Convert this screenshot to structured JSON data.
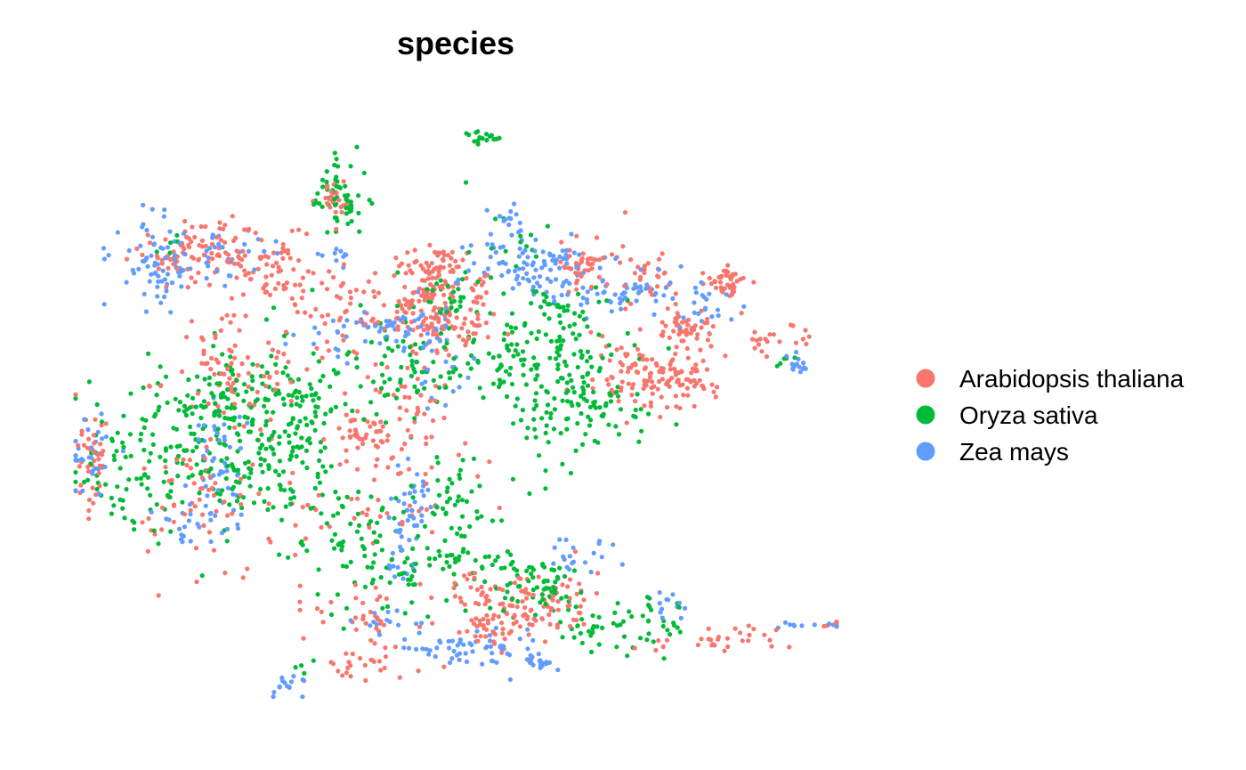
{
  "chart_data": {
    "type": "scatter",
    "title": "species",
    "xlabel": "",
    "ylabel": "",
    "axes": "none",
    "grid": false,
    "legend_position": "right",
    "series": [
      {
        "name": "Arabidopsis thaliana",
        "color": "#F8766D",
        "clusters": [
          {
            "x": 0.16,
            "y": 0.76,
            "sx": 0.045,
            "sy": 0.025,
            "n": 90
          },
          {
            "x": 0.26,
            "y": 0.73,
            "sx": 0.035,
            "sy": 0.035,
            "n": 70
          },
          {
            "x": 0.34,
            "y": 0.85,
            "sx": 0.012,
            "sy": 0.01,
            "n": 22
          },
          {
            "x": 0.47,
            "y": 0.74,
            "sx": 0.025,
            "sy": 0.02,
            "n": 45
          },
          {
            "x": 0.47,
            "y": 0.63,
            "sx": 0.03,
            "sy": 0.025,
            "n": 80
          },
          {
            "x": 0.43,
            "y": 0.67,
            "sx": 0.008,
            "sy": 0.008,
            "n": 14
          },
          {
            "x": 0.46,
            "y": 0.69,
            "sx": 0.01,
            "sy": 0.01,
            "n": 20
          },
          {
            "x": 0.475,
            "y": 0.71,
            "sx": 0.02,
            "sy": 0.02,
            "n": 30
          },
          {
            "x": 0.53,
            "y": 0.67,
            "sx": 0.012,
            "sy": 0.03,
            "n": 20
          },
          {
            "x": 0.2,
            "y": 0.57,
            "sx": 0.05,
            "sy": 0.06,
            "n": 90
          },
          {
            "x": 0.02,
            "y": 0.4,
            "sx": 0.012,
            "sy": 0.045,
            "n": 40
          },
          {
            "x": 0.16,
            "y": 0.35,
            "sx": 0.045,
            "sy": 0.05,
            "n": 60
          },
          {
            "x": 0.38,
            "y": 0.45,
            "sx": 0.03,
            "sy": 0.02,
            "n": 45
          },
          {
            "x": 0.44,
            "y": 0.5,
            "sx": 0.025,
            "sy": 0.04,
            "n": 35
          },
          {
            "x": 0.36,
            "y": 0.65,
            "sx": 0.04,
            "sy": 0.04,
            "n": 45
          },
          {
            "x": 0.67,
            "y": 0.74,
            "sx": 0.02,
            "sy": 0.02,
            "n": 45
          },
          {
            "x": 0.75,
            "y": 0.72,
            "sx": 0.018,
            "sy": 0.03,
            "n": 30
          },
          {
            "x": 0.74,
            "y": 0.55,
            "sx": 0.03,
            "sy": 0.03,
            "n": 80
          },
          {
            "x": 0.8,
            "y": 0.54,
            "sx": 0.025,
            "sy": 0.02,
            "n": 55
          },
          {
            "x": 0.8,
            "y": 0.63,
            "sx": 0.02,
            "sy": 0.015,
            "n": 45
          },
          {
            "x": 0.86,
            "y": 0.71,
            "sx": 0.015,
            "sy": 0.015,
            "n": 40
          },
          {
            "x": 0.91,
            "y": 0.62,
            "sx": 0.03,
            "sy": 0.015,
            "n": 25
          },
          {
            "x": 0.38,
            "y": 0.15,
            "sx": 0.04,
            "sy": 0.03,
            "n": 35
          },
          {
            "x": 0.59,
            "y": 0.17,
            "sx": 0.05,
            "sy": 0.025,
            "n": 110
          },
          {
            "x": 0.55,
            "y": 0.12,
            "sx": 0.03,
            "sy": 0.02,
            "n": 40
          },
          {
            "x": 0.84,
            "y": 0.11,
            "sx": 0.035,
            "sy": 0.015,
            "n": 30
          },
          {
            "x": 0.39,
            "y": 0.06,
            "sx": 0.03,
            "sy": 0.02,
            "n": 25
          },
          {
            "x": 1.0,
            "y": 0.13,
            "sx": 0.02,
            "sy": 0.004,
            "n": 10
          },
          {
            "x": 0.4,
            "y": 0.35,
            "sx": 0.07,
            "sy": 0.05,
            "n": 50
          }
        ]
      },
      {
        "name": "Oryza sativa",
        "color": "#00BA38",
        "clusters": [
          {
            "x": 0.35,
            "y": 0.85,
            "sx": 0.02,
            "sy": 0.03,
            "n": 60
          },
          {
            "x": 0.54,
            "y": 0.95,
            "sx": 0.01,
            "sy": 0.008,
            "n": 18
          },
          {
            "x": 0.63,
            "y": 0.63,
            "sx": 0.04,
            "sy": 0.04,
            "n": 70
          },
          {
            "x": 0.68,
            "y": 0.51,
            "sx": 0.04,
            "sy": 0.05,
            "n": 80
          },
          {
            "x": 0.62,
            "y": 0.52,
            "sx": 0.03,
            "sy": 0.06,
            "n": 60
          },
          {
            "x": 0.55,
            "y": 0.56,
            "sx": 0.03,
            "sy": 0.03,
            "n": 40
          },
          {
            "x": 0.2,
            "y": 0.5,
            "sx": 0.05,
            "sy": 0.05,
            "n": 130
          },
          {
            "x": 0.3,
            "y": 0.48,
            "sx": 0.03,
            "sy": 0.06,
            "n": 100
          },
          {
            "x": 0.1,
            "y": 0.4,
            "sx": 0.06,
            "sy": 0.06,
            "n": 120
          },
          {
            "x": 0.24,
            "y": 0.4,
            "sx": 0.03,
            "sy": 0.06,
            "n": 70
          },
          {
            "x": 0.44,
            "y": 0.57,
            "sx": 0.035,
            "sy": 0.06,
            "n": 70
          },
          {
            "x": 0.49,
            "y": 0.31,
            "sx": 0.03,
            "sy": 0.06,
            "n": 70
          },
          {
            "x": 0.42,
            "y": 0.22,
            "sx": 0.05,
            "sy": 0.04,
            "n": 60
          },
          {
            "x": 0.6,
            "y": 0.2,
            "sx": 0.04,
            "sy": 0.03,
            "n": 70
          },
          {
            "x": 0.7,
            "y": 0.13,
            "sx": 0.04,
            "sy": 0.02,
            "n": 40
          },
          {
            "x": 0.78,
            "y": 0.13,
            "sx": 0.02,
            "sy": 0.02,
            "n": 15
          },
          {
            "x": 0.5,
            "y": 0.69,
            "sx": 0.02,
            "sy": 0.02,
            "n": 25
          },
          {
            "x": 0.56,
            "y": 0.78,
            "sx": 0.02,
            "sy": 0.03,
            "n": 15
          },
          {
            "x": 0.12,
            "y": 0.77,
            "sx": 0.01,
            "sy": 0.01,
            "n": 5
          },
          {
            "x": 0.93,
            "y": 0.57,
            "sx": 0.008,
            "sy": 0.01,
            "n": 5
          },
          {
            "x": 0.31,
            "y": 0.06,
            "sx": 0.01,
            "sy": 0.005,
            "n": 4
          },
          {
            "x": 0.35,
            "y": 0.3,
            "sx": 0.03,
            "sy": 0.04,
            "n": 35
          }
        ]
      },
      {
        "name": "Zea mays",
        "color": "#619CFF",
        "clusters": [
          {
            "x": 0.11,
            "y": 0.74,
            "sx": 0.03,
            "sy": 0.035,
            "n": 70
          },
          {
            "x": 0.2,
            "y": 0.76,
            "sx": 0.03,
            "sy": 0.02,
            "n": 30
          },
          {
            "x": 0.61,
            "y": 0.73,
            "sx": 0.04,
            "sy": 0.025,
            "n": 90
          },
          {
            "x": 0.72,
            "y": 0.69,
            "sx": 0.04,
            "sy": 0.02,
            "n": 50
          },
          {
            "x": 0.82,
            "y": 0.67,
            "sx": 0.03,
            "sy": 0.02,
            "n": 25
          },
          {
            "x": 0.56,
            "y": 0.8,
            "sx": 0.02,
            "sy": 0.02,
            "n": 20
          },
          {
            "x": 0.4,
            "y": 0.63,
            "sx": 0.02,
            "sy": 0.01,
            "n": 25
          },
          {
            "x": 0.34,
            "y": 0.62,
            "sx": 0.03,
            "sy": 0.02,
            "n": 20
          },
          {
            "x": 0.46,
            "y": 0.63,
            "sx": 0.02,
            "sy": 0.025,
            "n": 25
          },
          {
            "x": 0.48,
            "y": 0.55,
            "sx": 0.02,
            "sy": 0.025,
            "n": 20
          },
          {
            "x": 0.02,
            "y": 0.42,
            "sx": 0.02,
            "sy": 0.03,
            "n": 30
          },
          {
            "x": 0.19,
            "y": 0.42,
            "sx": 0.02,
            "sy": 0.06,
            "n": 40
          },
          {
            "x": 0.16,
            "y": 0.31,
            "sx": 0.03,
            "sy": 0.03,
            "n": 30
          },
          {
            "x": 0.44,
            "y": 0.34,
            "sx": 0.012,
            "sy": 0.04,
            "n": 35
          },
          {
            "x": 0.43,
            "y": 0.24,
            "sx": 0.01,
            "sy": 0.02,
            "n": 15
          },
          {
            "x": 0.66,
            "y": 0.25,
            "sx": 0.02,
            "sy": 0.02,
            "n": 20
          },
          {
            "x": 0.55,
            "y": 0.09,
            "sx": 0.03,
            "sy": 0.02,
            "n": 30
          },
          {
            "x": 0.61,
            "y": 0.07,
            "sx": 0.01,
            "sy": 0.008,
            "n": 20
          },
          {
            "x": 0.48,
            "y": 0.09,
            "sx": 0.03,
            "sy": 0.015,
            "n": 25
          },
          {
            "x": 0.4,
            "y": 0.14,
            "sx": 0.03,
            "sy": 0.015,
            "n": 15
          },
          {
            "x": 0.78,
            "y": 0.16,
            "sx": 0.01,
            "sy": 0.015,
            "n": 12
          },
          {
            "x": 0.28,
            "y": 0.03,
            "sx": 0.015,
            "sy": 0.01,
            "n": 15
          },
          {
            "x": 0.97,
            "y": 0.13,
            "sx": 0.03,
            "sy": 0.004,
            "n": 12
          },
          {
            "x": 0.95,
            "y": 0.57,
            "sx": 0.008,
            "sy": 0.01,
            "n": 15
          },
          {
            "x": 0.34,
            "y": 0.75,
            "sx": 0.01,
            "sy": 0.01,
            "n": 10
          }
        ]
      }
    ]
  }
}
